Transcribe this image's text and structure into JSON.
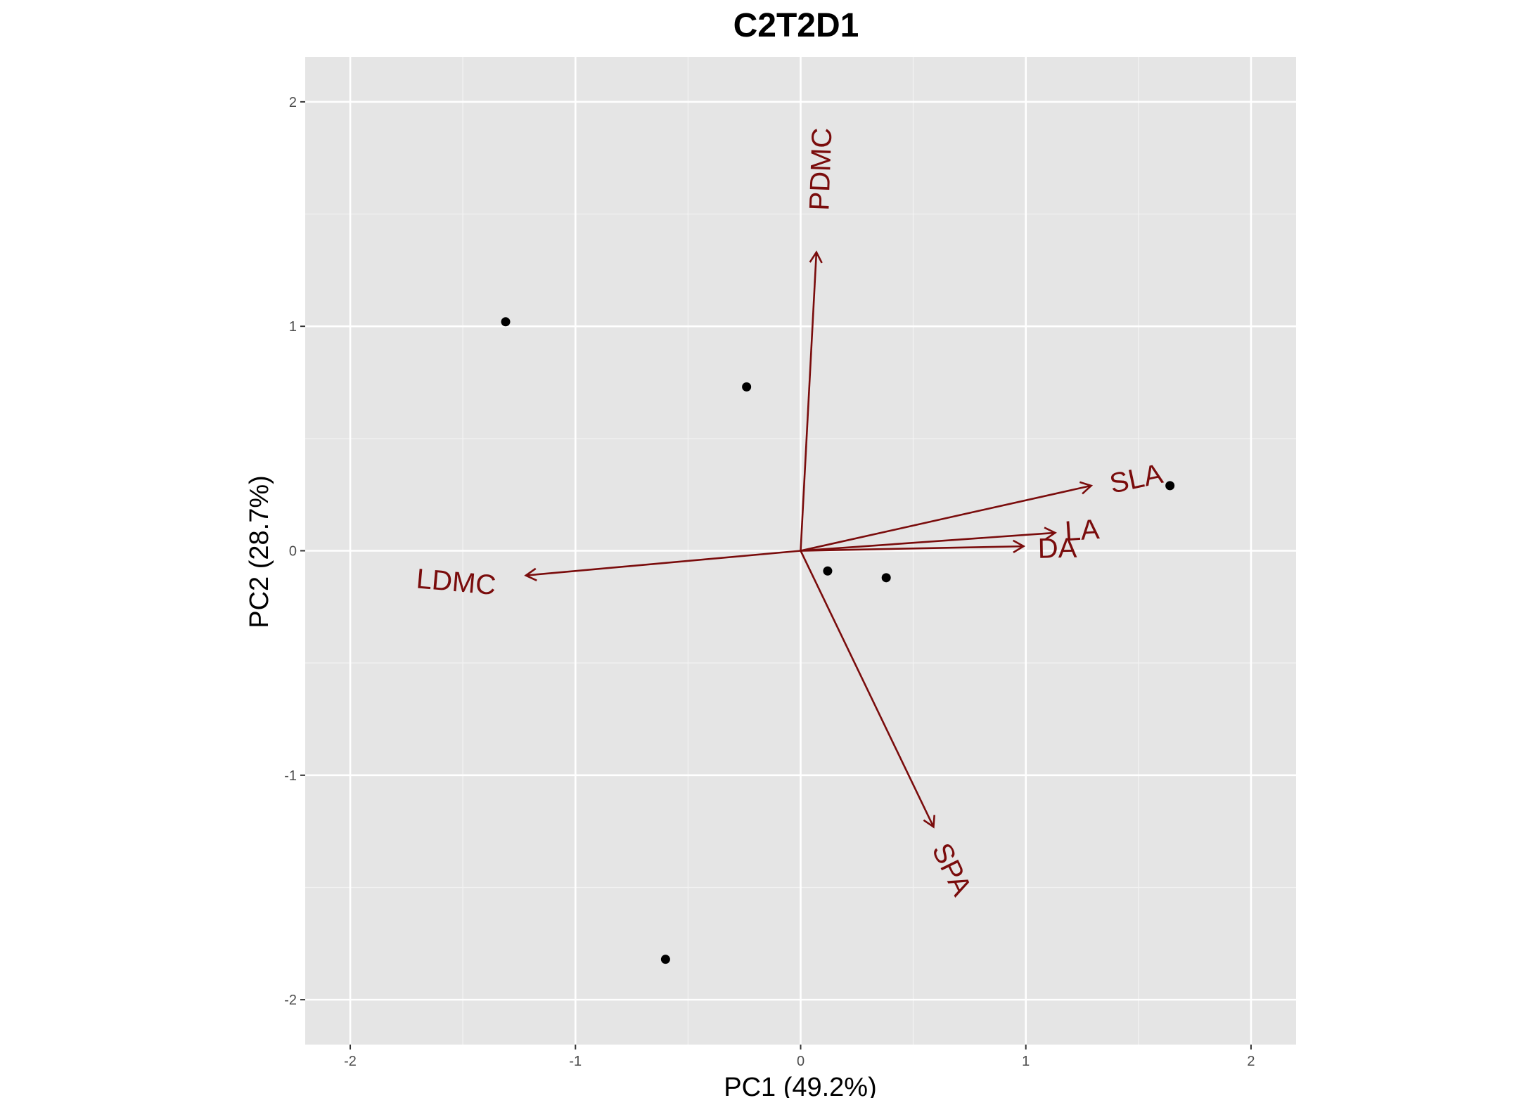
{
  "chart_data": {
    "type": "scatter",
    "subtype": "pca-biplot",
    "title": "C2T2D1",
    "xlabel": "PC1 (49.2%)",
    "ylabel": "PC2 (28.7%)",
    "xlim": [
      -2.2,
      2.2
    ],
    "ylim": [
      -2.2,
      2.2
    ],
    "x_ticks": [
      -2,
      -1,
      0,
      1,
      2
    ],
    "y_ticks": [
      -2,
      -1,
      0,
      1,
      2
    ],
    "x_tick_labels": [
      "-2",
      "-1",
      "0",
      "1",
      "2"
    ],
    "y_tick_labels": [
      "-2",
      "-1",
      "0",
      "1",
      "2"
    ],
    "grid": true,
    "panel_background": "#e5e5e5",
    "points": [
      {
        "x": -1.31,
        "y": 1.02
      },
      {
        "x": -0.24,
        "y": 0.73
      },
      {
        "x": 0.12,
        "y": -0.09
      },
      {
        "x": 0.38,
        "y": -0.12
      },
      {
        "x": 1.64,
        "y": 0.29
      },
      {
        "x": -0.6,
        "y": -1.82
      }
    ],
    "point_color": "#000000",
    "loadings": [
      {
        "label": "PDMC",
        "x": 0.07,
        "y": 1.33,
        "label_x": 0.09,
        "label_y": 1.7,
        "angle": 88
      },
      {
        "label": "SLA",
        "x": 1.29,
        "y": 0.29,
        "label_x": 1.49,
        "label_y": 0.32,
        "angle": 12
      },
      {
        "label": "LA",
        "x": 1.13,
        "y": 0.08,
        "label_x": 1.25,
        "label_y": 0.09,
        "angle": 4
      },
      {
        "label": "DA",
        "x": 0.99,
        "y": 0.02,
        "label_x": 1.14,
        "label_y": 0.01,
        "angle": 1
      },
      {
        "label": "LDMC",
        "x": -1.22,
        "y": -0.11,
        "label_x": -1.53,
        "label_y": -0.14,
        "angle": -5
      },
      {
        "label": "SPA",
        "x": 0.59,
        "y": -1.23,
        "label_x": 0.67,
        "label_y": -1.42,
        "angle": -64
      }
    ],
    "loading_color": "#7a0c0c"
  }
}
